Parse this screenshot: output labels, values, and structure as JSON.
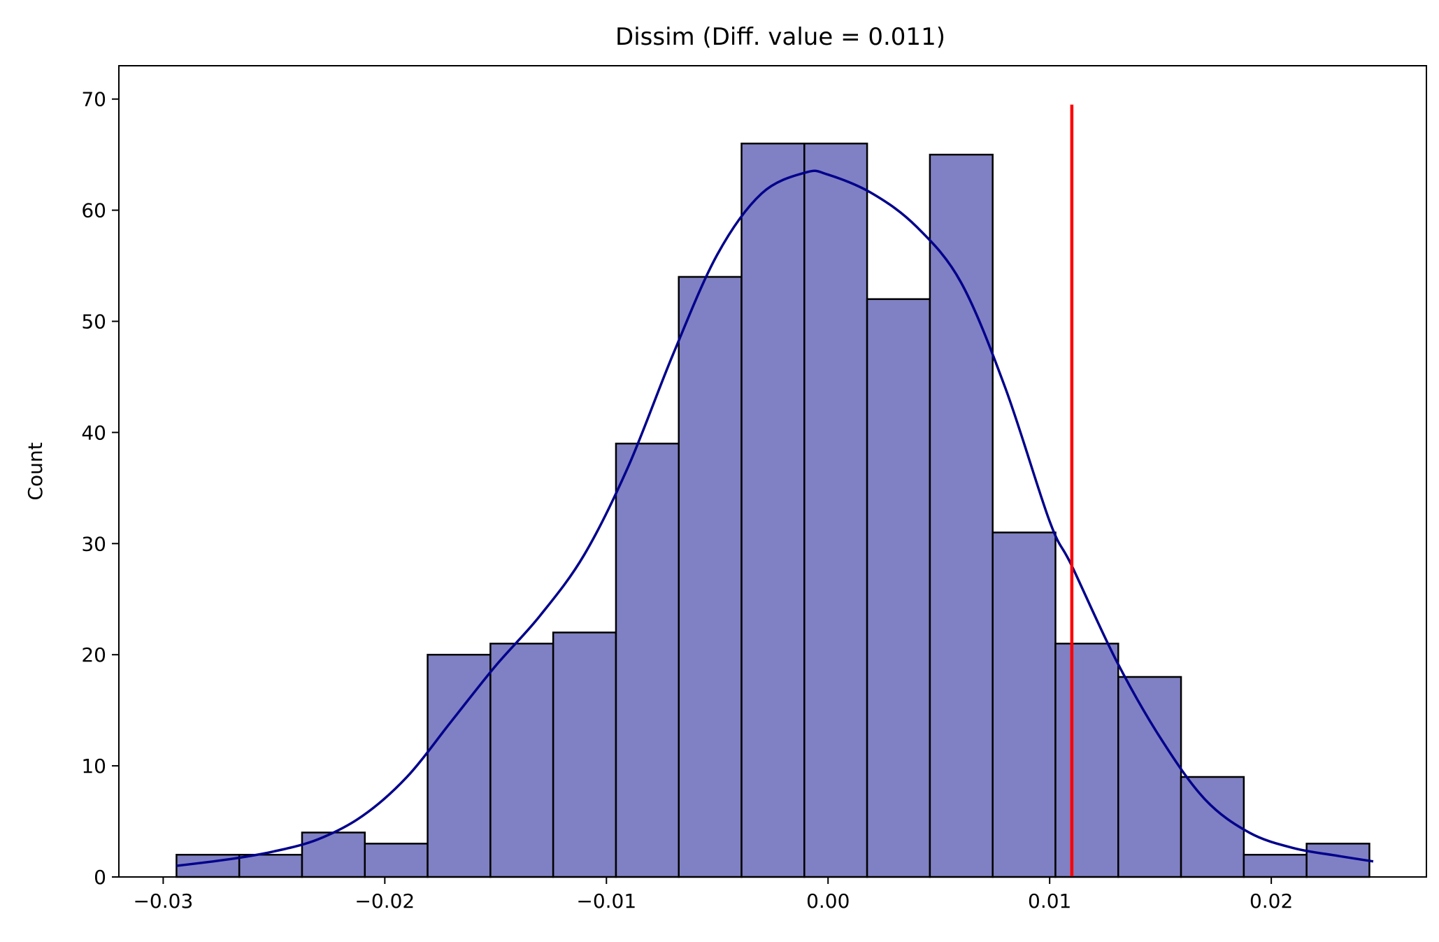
{
  "chart_data": {
    "type": "bar",
    "subtype": "histogram",
    "title": "Dissim (Diff. value = 0.011)",
    "xlabel": "",
    "ylabel": "Count",
    "xlim": [
      -0.032,
      0.027
    ],
    "ylim": [
      0,
      73
    ],
    "grid": false,
    "bar_color": "#8080c4",
    "bar_edge_color": "#000000",
    "kde_color": "#00008b",
    "marker_color": "#ff0000",
    "bin_start": -0.0294,
    "bin_width": 0.002833,
    "counts": [
      2,
      2,
      4,
      3,
      20,
      21,
      22,
      39,
      54,
      66,
      66,
      52,
      65,
      31,
      21,
      18,
      9,
      2,
      3
    ],
    "kde": {
      "x": [
        -0.0294,
        -0.027,
        -0.025,
        -0.023,
        -0.021,
        -0.019,
        -0.017,
        -0.015,
        -0.013,
        -0.011,
        -0.009,
        -0.007,
        -0.005,
        -0.003,
        -0.001,
        0.0,
        0.002,
        0.004,
        0.006,
        0.008,
        0.01,
        0.011,
        0.013,
        0.015,
        0.017,
        0.019,
        0.021,
        0.023,
        0.0246
      ],
      "y": [
        1.0,
        1.6,
        2.3,
        3.4,
        5.5,
        9.0,
        14.0,
        19.0,
        23.5,
        29.0,
        37.0,
        47.0,
        56.0,
        61.5,
        63.4,
        63.2,
        61.5,
        58.5,
        53.5,
        44.0,
        32.0,
        28.0,
        19.5,
        12.5,
        7.0,
        4.0,
        2.6,
        1.9,
        1.4
      ]
    },
    "vline": {
      "x": 0.011,
      "ymin": 0,
      "ymax": 69.5
    },
    "xticks": [
      {
        "value": -0.03,
        "label": "−0.03"
      },
      {
        "value": -0.02,
        "label": "−0.02"
      },
      {
        "value": -0.01,
        "label": "−0.01"
      },
      {
        "value": 0.0,
        "label": "0.00"
      },
      {
        "value": 0.01,
        "label": "0.01"
      },
      {
        "value": 0.02,
        "label": "0.02"
      }
    ],
    "yticks": [
      {
        "value": 0,
        "label": "0"
      },
      {
        "value": 10,
        "label": "10"
      },
      {
        "value": 20,
        "label": "20"
      },
      {
        "value": 30,
        "label": "30"
      },
      {
        "value": 40,
        "label": "40"
      },
      {
        "value": 50,
        "label": "50"
      },
      {
        "value": 60,
        "label": "60"
      },
      {
        "value": 70,
        "label": "70"
      }
    ]
  }
}
